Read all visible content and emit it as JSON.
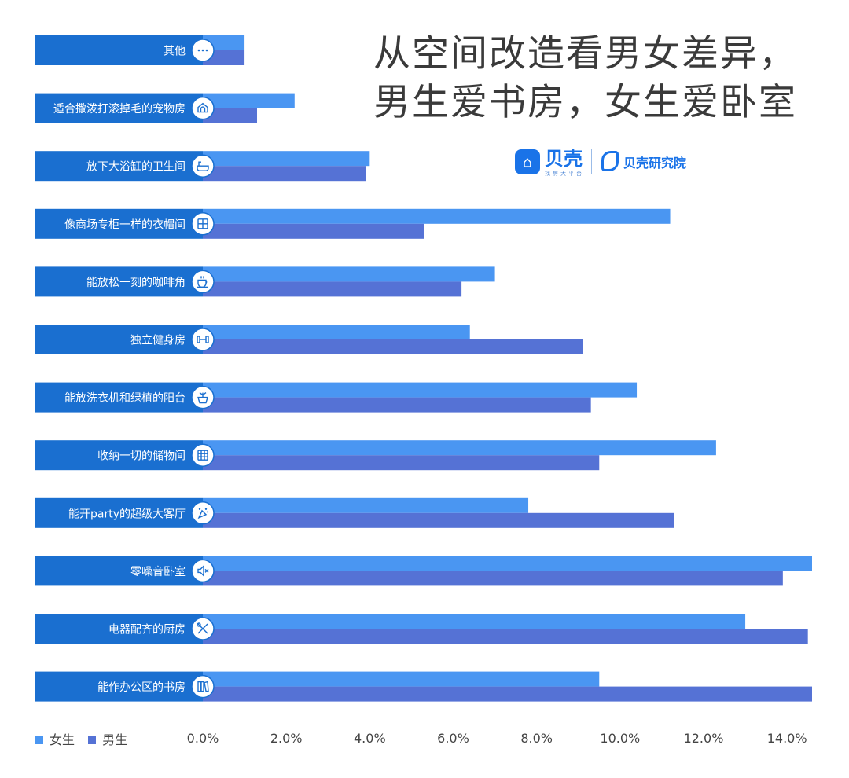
{
  "title_lines": [
    "从空间改造看男女差异，",
    "男生爱书房，女生爱卧室"
  ],
  "brand": {
    "logo_icon": "house-icon",
    "name": "贝壳",
    "sub": "找房大平台",
    "institute_icon": "leaf-icon",
    "institute_name": "贝壳研究院"
  },
  "colors": {
    "label_box": "#1a6fd0",
    "female": "#4a96f2",
    "male": "#5572d5",
    "icon_stroke": "#1a6fd0"
  },
  "chart_data": {
    "type": "bar",
    "orientation": "horizontal",
    "categories": [
      "其他",
      "适合撒泼打滚掉毛的宠物房",
      "放下大浴缸的卫生间",
      "像商场专柜一样的衣帽间",
      "能放松一刻的咖啡角",
      "独立健身房",
      "能放洗衣机和绿植的阳台",
      "收纳一切的储物间",
      "能开party的超级大客厅",
      "零噪音卧室",
      "电器配齐的厨房",
      "能作办公区的书房"
    ],
    "category_icons": [
      "more-dots-icon",
      "pet-house-icon",
      "bathtub-icon",
      "wardrobe-icon",
      "coffee-cup-icon",
      "dumbbell-icon",
      "plant-pot-icon",
      "storage-cabinet-icon",
      "party-icon",
      "speaker-mute-icon",
      "kitchen-tools-icon",
      "bookshelf-icon"
    ],
    "series": [
      {
        "name": "女生",
        "values": [
          1.0,
          2.2,
          4.0,
          11.2,
          7.0,
          6.4,
          10.4,
          12.3,
          7.8,
          14.6,
          13.0,
          9.5
        ]
      },
      {
        "name": "男生",
        "values": [
          1.0,
          1.3,
          3.9,
          5.3,
          6.2,
          9.1,
          9.3,
          9.5,
          11.3,
          13.9,
          14.5,
          14.6
        ]
      }
    ],
    "x_ticks": [
      "0.0%",
      "2.0%",
      "4.0%",
      "6.0%",
      "8.0%",
      "10.0%",
      "12.0%",
      "14.0%"
    ],
    "xlim": [
      0,
      14.6
    ],
    "legend_position": "bottom-left"
  }
}
